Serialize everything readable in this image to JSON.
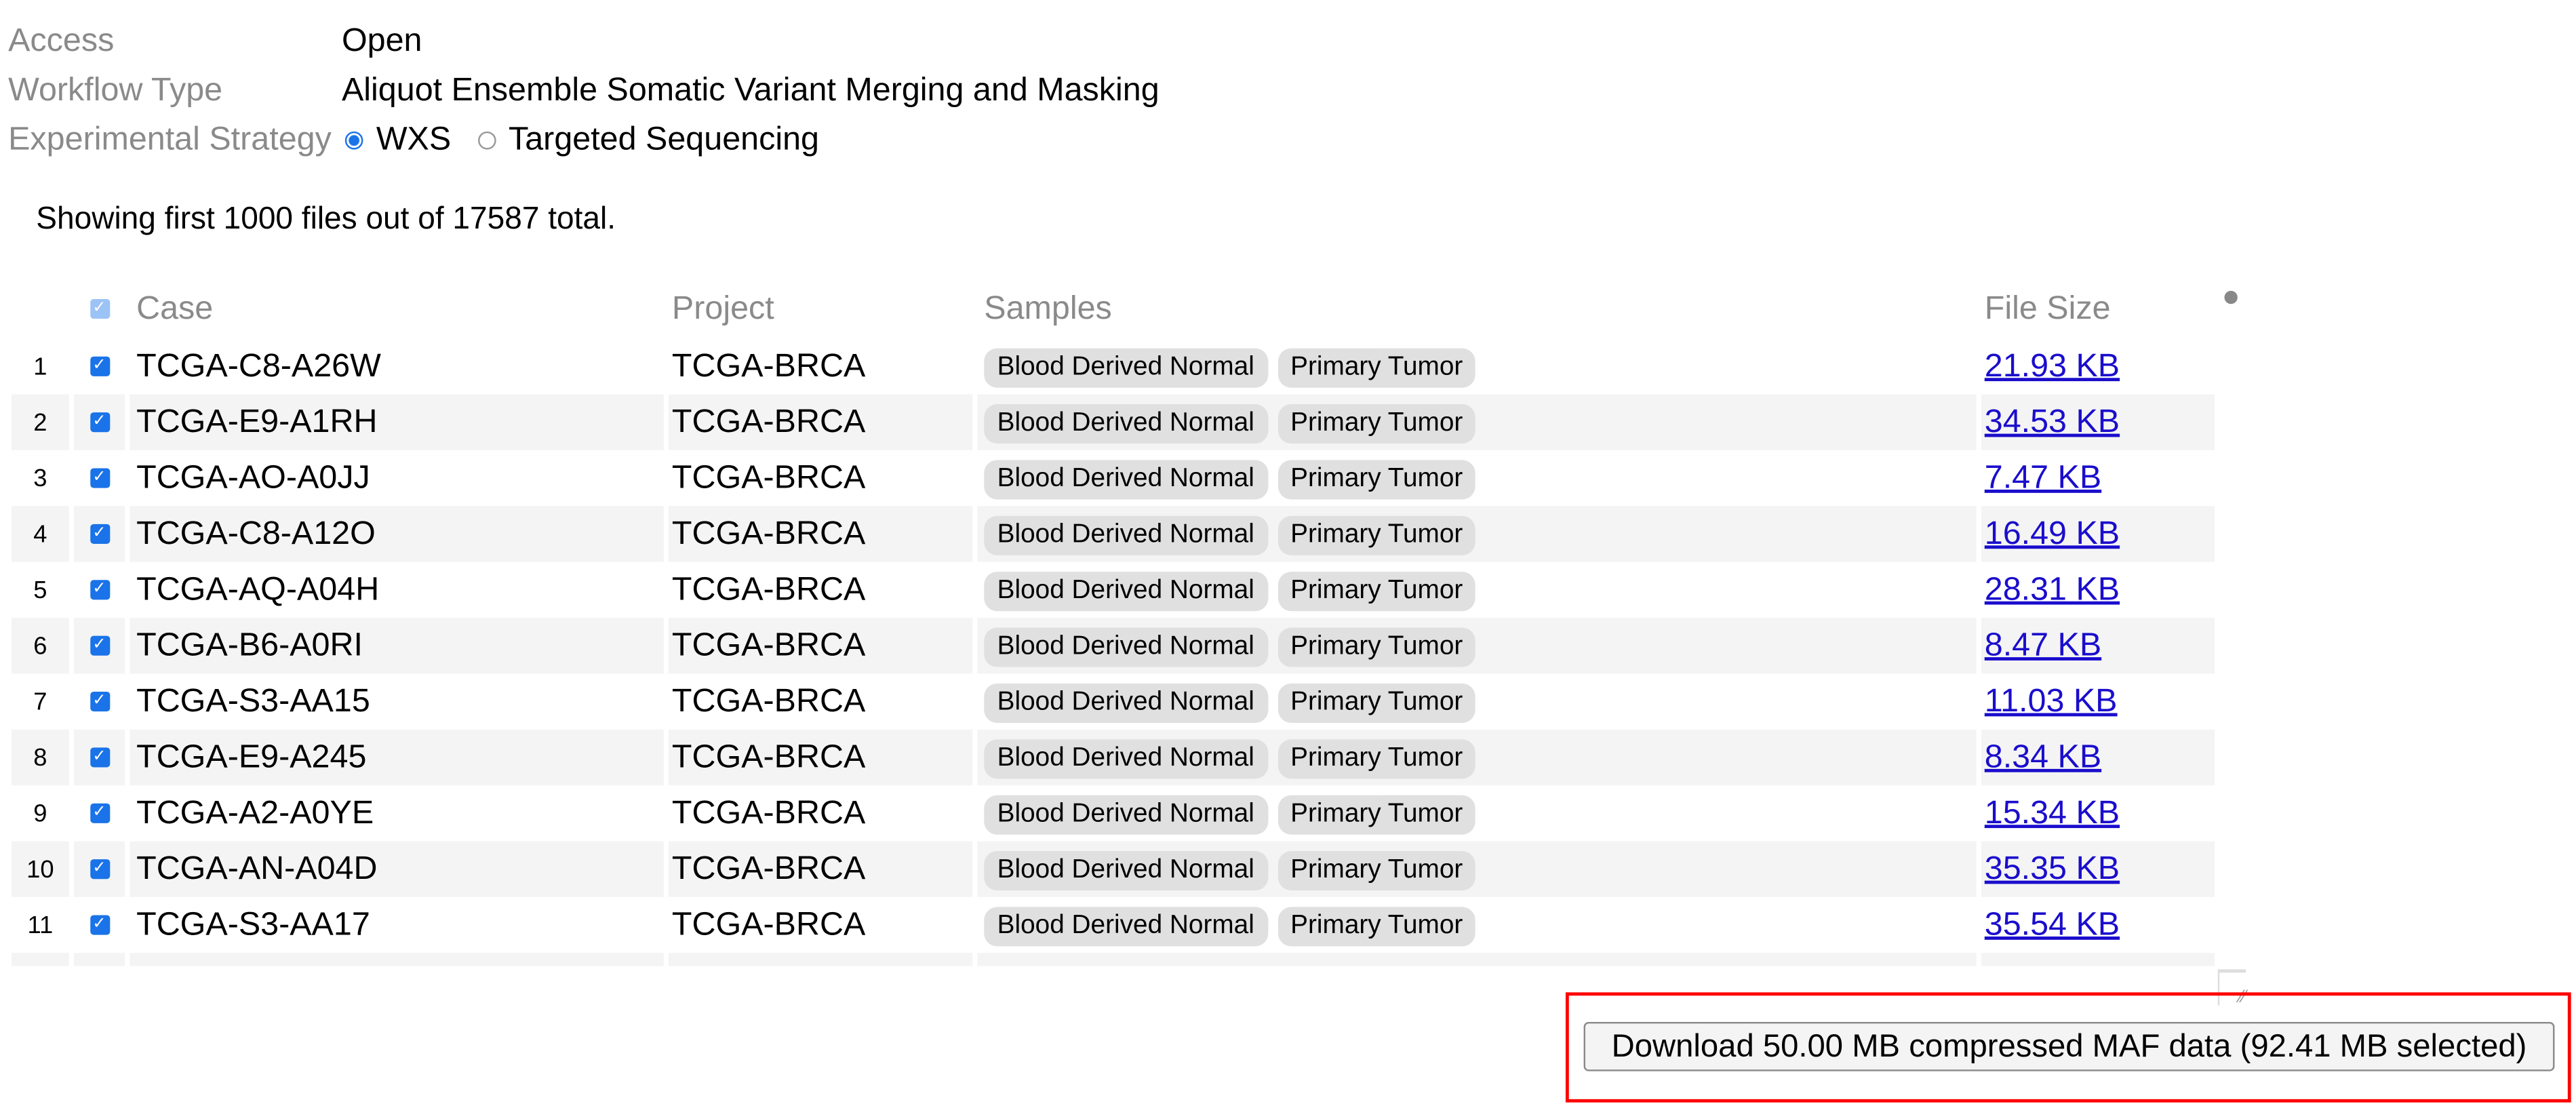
{
  "meta": {
    "access_label": "Access",
    "access_value": "Open",
    "workflow_label": "Workflow Type",
    "workflow_value": "Aliquot Ensemble Somatic Variant Merging and Masking",
    "strategy_label": "Experimental Strategy",
    "strategy_options": [
      {
        "label": "WXS",
        "selected": true
      },
      {
        "label": "Targeted Sequencing",
        "selected": false
      }
    ]
  },
  "showing_text": "Showing first 1000 files out of 17587 total.",
  "table": {
    "headers": {
      "case": "Case",
      "project": "Project",
      "samples": "Samples",
      "file_size": "File Size"
    },
    "header_checked": true,
    "rows": [
      {
        "n": "1",
        "case": "TCGA-C8-A26W",
        "project": "TCGA-BRCA",
        "samples": [
          "Blood Derived Normal",
          "Primary Tumor"
        ],
        "size": "21.93 KB",
        "checked": true
      },
      {
        "n": "2",
        "case": "TCGA-E9-A1RH",
        "project": "TCGA-BRCA",
        "samples": [
          "Blood Derived Normal",
          "Primary Tumor"
        ],
        "size": "34.53 KB",
        "checked": true
      },
      {
        "n": "3",
        "case": "TCGA-AO-A0JJ",
        "project": "TCGA-BRCA",
        "samples": [
          "Blood Derived Normal",
          "Primary Tumor"
        ],
        "size": "7.47 KB",
        "checked": true
      },
      {
        "n": "4",
        "case": "TCGA-C8-A12O",
        "project": "TCGA-BRCA",
        "samples": [
          "Blood Derived Normal",
          "Primary Tumor"
        ],
        "size": "16.49 KB",
        "checked": true
      },
      {
        "n": "5",
        "case": "TCGA-AQ-A04H",
        "project": "TCGA-BRCA",
        "samples": [
          "Blood Derived Normal",
          "Primary Tumor"
        ],
        "size": "28.31 KB",
        "checked": true
      },
      {
        "n": "6",
        "case": "TCGA-B6-A0RI",
        "project": "TCGA-BRCA",
        "samples": [
          "Blood Derived Normal",
          "Primary Tumor"
        ],
        "size": "8.47 KB",
        "checked": true
      },
      {
        "n": "7",
        "case": "TCGA-S3-AA15",
        "project": "TCGA-BRCA",
        "samples": [
          "Blood Derived Normal",
          "Primary Tumor"
        ],
        "size": "11.03 KB",
        "checked": true
      },
      {
        "n": "8",
        "case": "TCGA-E9-A245",
        "project": "TCGA-BRCA",
        "samples": [
          "Blood Derived Normal",
          "Primary Tumor"
        ],
        "size": "8.34 KB",
        "checked": true
      },
      {
        "n": "9",
        "case": "TCGA-A2-A0YE",
        "project": "TCGA-BRCA",
        "samples": [
          "Blood Derived Normal",
          "Primary Tumor"
        ],
        "size": "15.34 KB",
        "checked": true
      },
      {
        "n": "10",
        "case": "TCGA-AN-A04D",
        "project": "TCGA-BRCA",
        "samples": [
          "Blood Derived Normal",
          "Primary Tumor"
        ],
        "size": "35.35 KB",
        "checked": true
      },
      {
        "n": "11",
        "case": "TCGA-S3-AA17",
        "project": "TCGA-BRCA",
        "samples": [
          "Blood Derived Normal",
          "Primary Tumor"
        ],
        "size": "35.54 KB",
        "checked": true
      }
    ]
  },
  "download_button": "Download 50.00 MB compressed MAF data (92.41 MB selected)",
  "colors": {
    "accent": "#1a73e8",
    "link": "#1a0dcc",
    "highlight": "#ff0000"
  }
}
